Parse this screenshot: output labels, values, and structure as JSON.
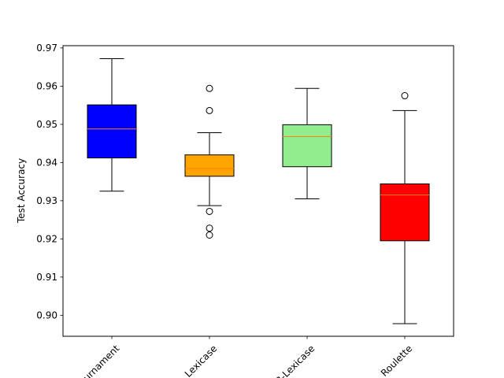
{
  "chart_data": {
    "type": "box",
    "title": "",
    "xlabel": "",
    "ylabel": "Test Accuracy",
    "ylim": [
      0.8945,
      0.9706
    ],
    "yticks": [
      0.9,
      0.91,
      0.92,
      0.93,
      0.94,
      0.95,
      0.96,
      0.97
    ],
    "ytick_labels": [
      "0.90",
      "0.91",
      "0.92",
      "0.93",
      "0.94",
      "0.95",
      "0.96",
      "0.97"
    ],
    "grid": false,
    "x_tick_rotation": 45,
    "median_color": "#ff7f0e",
    "boxes": [
      {
        "name": "Tournament",
        "color": "#0000ff",
        "whisker_low": 0.9325,
        "q1": 0.9412,
        "median": 0.9488,
        "q3": 0.9551,
        "whisker_high": 0.9672,
        "outliers": []
      },
      {
        "name": "Lexicase",
        "color": "#ffa500",
        "whisker_low": 0.9287,
        "q1": 0.9364,
        "median": 0.9384,
        "q3": 0.942,
        "whisker_high": 0.9478,
        "outliers": [
          0.9594,
          0.9536,
          0.9272,
          0.9228,
          0.921
        ]
      },
      {
        "name": "B-Lexicase",
        "color": "#90ee90",
        "whisker_low": 0.9305,
        "q1": 0.9389,
        "median": 0.9468,
        "q3": 0.9499,
        "whisker_high": 0.9594,
        "outliers": []
      },
      {
        "name": "Roulette",
        "color": "#ff0000",
        "whisker_low": 0.8978,
        "q1": 0.9195,
        "median": 0.9315,
        "q3": 0.9344,
        "whisker_high": 0.9536,
        "outliers": [
          0.9575
        ]
      }
    ]
  }
}
